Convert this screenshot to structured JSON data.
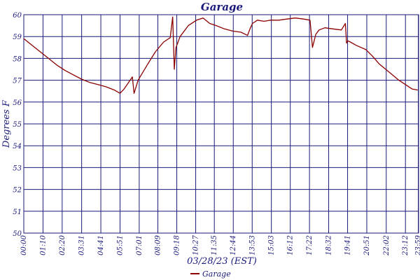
{
  "chart_data": {
    "type": "line",
    "title": "Garage",
    "xlabel": "03/28/23 (EST)",
    "ylabel": "Degrees F",
    "ylim": [
      50,
      60
    ],
    "grid": true,
    "legend_position": "bottom-center",
    "line_color": "#8b0000",
    "grid_color": "#1a1a7a",
    "x_ticks": [
      "00:00",
      "01:10",
      "02:20",
      "03:31",
      "04:41",
      "05:51",
      "07:01",
      "08:09",
      "09:18",
      "10:27",
      "11:35",
      "12:44",
      "13:53",
      "15:03",
      "16:12",
      "17:22",
      "18:32",
      "19:41",
      "20:51",
      "22:02",
      "23:12",
      "23:59"
    ],
    "y_ticks": [
      "50",
      "51",
      "52",
      "53",
      "54",
      "55",
      "56",
      "57",
      "58",
      "59",
      "60"
    ],
    "series": [
      {
        "name": "Garage",
        "x_hours": [
          0,
          0.5,
          1,
          1.5,
          2,
          2.5,
          3,
          3.5,
          4,
          4.5,
          5,
          5.5,
          5.85,
          6.1,
          6.6,
          6.7,
          6.95,
          7.5,
          8,
          8.5,
          8.9,
          9.05,
          9.15,
          9.25,
          9.5,
          10,
          10.5,
          10.9,
          11.3,
          11.7,
          12.2,
          12.7,
          13.2,
          13.6,
          13.75,
          13.9,
          14.2,
          14.6,
          15.0,
          15.5,
          16.0,
          16.5,
          17.0,
          17.4,
          17.55,
          17.75,
          17.95,
          18.3,
          18.8,
          19.3,
          19.55,
          19.62,
          19.7,
          19.85,
          20.2,
          20.8,
          21.2,
          21.6,
          22.0,
          22.4,
          22.8,
          23.2,
          23.6,
          23.95
        ],
        "values": [
          58.9,
          58.6,
          58.3,
          58.0,
          57.7,
          57.45,
          57.25,
          57.05,
          56.9,
          56.8,
          56.7,
          56.55,
          56.4,
          56.6,
          57.15,
          56.4,
          57.0,
          57.7,
          58.3,
          58.75,
          58.95,
          59.9,
          57.5,
          58.5,
          59.0,
          59.5,
          59.75,
          59.85,
          59.6,
          59.5,
          59.35,
          59.25,
          59.2,
          59.05,
          59.35,
          59.6,
          59.75,
          59.7,
          59.75,
          59.75,
          59.8,
          59.85,
          59.8,
          59.75,
          58.5,
          59.1,
          59.3,
          59.4,
          59.35,
          59.3,
          59.6,
          58.7,
          58.8,
          58.75,
          58.6,
          58.4,
          58.1,
          57.75,
          57.5,
          57.25,
          57.0,
          56.8,
          56.6,
          56.55
        ]
      }
    ]
  }
}
